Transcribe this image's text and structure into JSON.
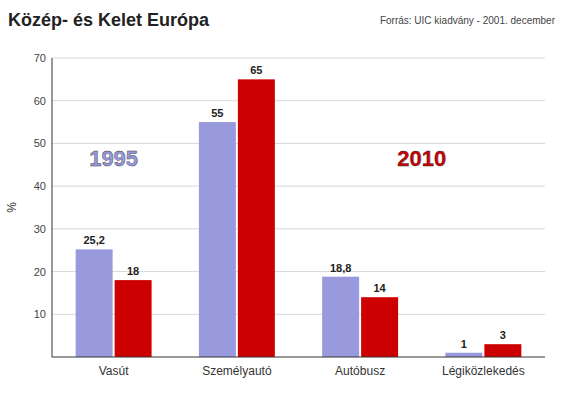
{
  "chart_data": {
    "type": "bar",
    "title": "Közép- és Kelet Európa",
    "source": "Forrás: UIC kiadvány - 2001. december",
    "y_label": "%",
    "categories": [
      "Vasút",
      "Személyautó",
      "Autóbusz",
      "Légiközlekedés"
    ],
    "series": [
      {
        "name": "1995",
        "color": "#9999dd",
        "values": [
          25.2,
          55,
          18.8,
          1
        ],
        "value_labels": [
          "25,2",
          "55",
          "18,8",
          "1"
        ]
      },
      {
        "name": "2010",
        "color": "#cc0000",
        "values": [
          18,
          65,
          14,
          3
        ]
      }
    ],
    "ylim": [
      0,
      70
    ],
    "yticks": [
      10,
      20,
      30,
      40,
      50,
      60,
      70
    ],
    "grid": true,
    "data_labels": true
  }
}
